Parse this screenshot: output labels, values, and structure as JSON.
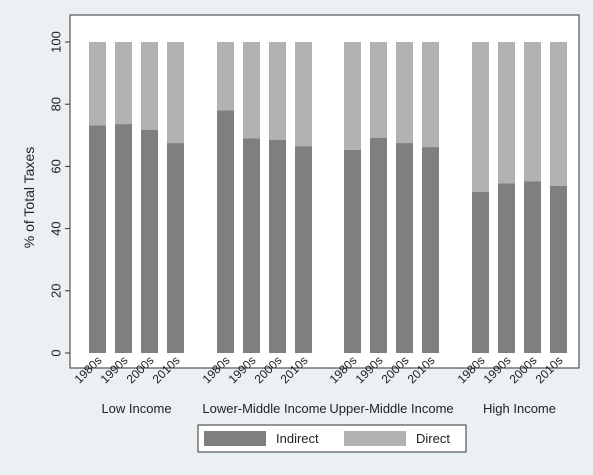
{
  "colors": {
    "background": "#eaf0f3",
    "plot_background": "#ffffff",
    "indirect": "#7f7f7f",
    "direct": "#b2b2b2",
    "axis": "#333333"
  },
  "chart_data": {
    "type": "bar",
    "stacked": true,
    "title": "",
    "xlabel": "",
    "ylabel": "% of Total Taxes",
    "ylim": [
      0,
      100
    ],
    "yticks": [
      0,
      20,
      40,
      60,
      80,
      100
    ],
    "grid": false,
    "legend_position": "bottom",
    "groups": [
      {
        "name": "Low Income",
        "categories": [
          "1980s",
          "1990s",
          "2000s",
          "2010s"
        ]
      },
      {
        "name": "Lower-Middle Income",
        "categories": [
          "1980s",
          "1990s",
          "2000s",
          "2010s"
        ]
      },
      {
        "name": "Upper-Middle Income",
        "categories": [
          "1980s",
          "1990s",
          "2000s",
          "2010s"
        ]
      },
      {
        "name": "High Income",
        "categories": [
          "1980s",
          "1990s",
          "2000s",
          "2010s"
        ]
      }
    ],
    "series": [
      {
        "name": "Indirect",
        "values": [
          73.2,
          73.6,
          71.8,
          67.5,
          78.0,
          69.0,
          68.5,
          66.5,
          65.3,
          69.2,
          67.5,
          66.2,
          51.8,
          54.5,
          55.2,
          53.7
        ]
      },
      {
        "name": "Direct",
        "values": [
          26.8,
          26.4,
          28.2,
          32.5,
          22.0,
          31.0,
          31.5,
          33.5,
          34.7,
          30.8,
          32.5,
          33.8,
          48.2,
          45.5,
          44.8,
          46.3
        ]
      }
    ]
  }
}
